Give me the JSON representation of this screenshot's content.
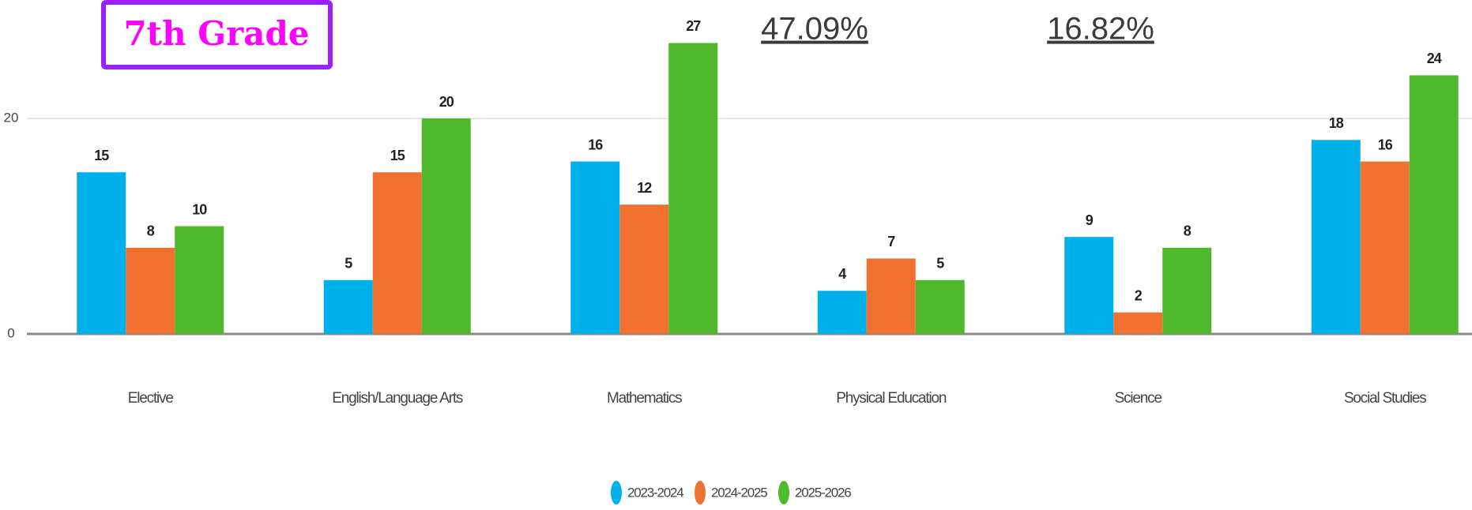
{
  "chart_data": {
    "type": "bar",
    "annotations": [
      "7th Grade",
      "47.09%",
      "16.82%"
    ],
    "categories": [
      "Elective",
      "English/Language Arts",
      "Mathematics",
      "Physical Education",
      "Science",
      "Social Studies"
    ],
    "series": [
      {
        "name": "2023-2024",
        "color": "#00b0ea",
        "values": [
          15,
          5,
          16,
          4,
          9,
          18
        ]
      },
      {
        "name": "2024-2025",
        "color": "#f07030",
        "values": [
          8,
          15,
          12,
          7,
          2,
          16
        ]
      },
      {
        "name": "2025-2026",
        "color": "#50b82c",
        "values": [
          10,
          20,
          27,
          5,
          8,
          24
        ]
      }
    ],
    "ylim": [
      0,
      30
    ],
    "yticks": [
      0,
      20
    ],
    "grid": true,
    "legend": "bottom"
  }
}
